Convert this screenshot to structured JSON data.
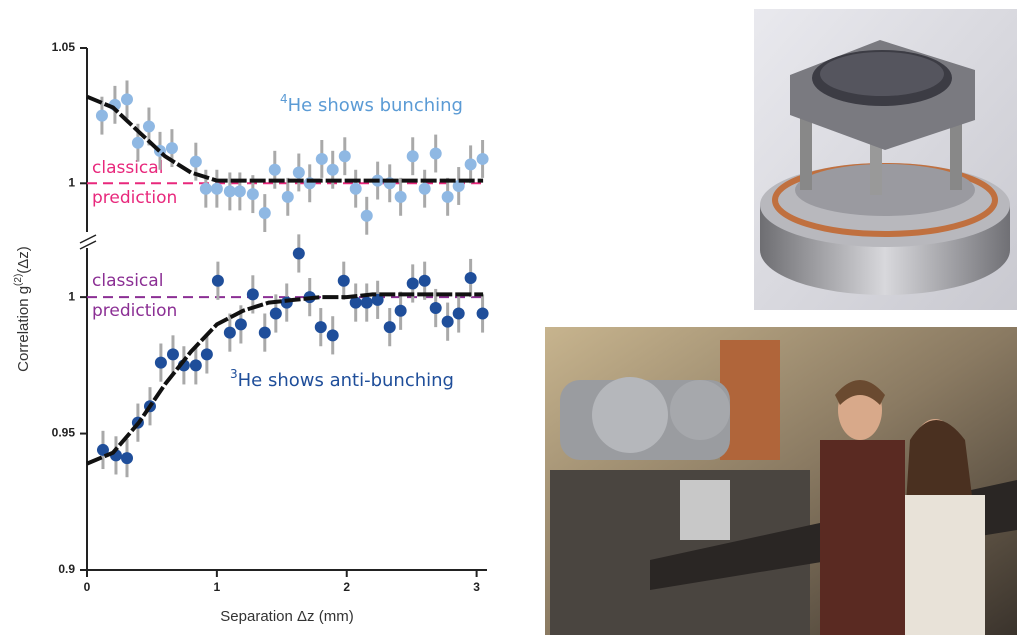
{
  "chart_data": {
    "type": "scatter",
    "x_label": "Separation Δz (mm)",
    "y_label": {
      "main": "Correlation g",
      "sup": "(2)",
      "rest": "(Δz)"
    },
    "xlim": [
      0,
      3.08
    ],
    "xticks": [
      0,
      1,
      2,
      3
    ],
    "fit_x": [
      0,
      0.2,
      0.4,
      0.6,
      0.8,
      1.0,
      1.2,
      1.4,
      1.6,
      1.8,
      2.0,
      2.2,
      2.4,
      2.6,
      2.8,
      3.0,
      3.05
    ],
    "panels": [
      {
        "ylim": [
          0.982,
          1.05
        ],
        "yticks": [
          1,
          1.05
        ],
        "reference": 1,
        "reference_color": "#e8287c",
        "reference_label": [
          "classical",
          "prediction"
        ],
        "annotation": {
          "sup": "4",
          "text": "He shows bunching"
        },
        "annotation_color": "#5b9bd5",
        "fit": [
          1.032,
          1.028,
          1.019,
          1.01,
          1.004,
          1.001,
          1.001,
          1.001,
          1.001,
          1.001,
          1.001,
          1.001,
          1.001,
          1.001,
          1.001,
          1.001,
          1.001
        ],
        "fit_color": "#111111",
        "series": [
          {
            "color": "#8fb8e3",
            "error_color": "#a9a9a9",
            "error": 0.007,
            "x": [
              0.115,
              0.215,
              0.308,
              0.392,
              0.477,
              0.562,
              0.654,
              0.838,
              0.915,
              1.0,
              1.1,
              1.177,
              1.277,
              1.369,
              1.446,
              1.546,
              1.631,
              1.715,
              1.808,
              1.892,
              1.985,
              2.069,
              2.154,
              2.238,
              2.331,
              2.415,
              2.508,
              2.6,
              2.685,
              2.777,
              2.862,
              2.954,
              3.046
            ],
            "values": [
              1.025,
              1.029,
              1.031,
              1.015,
              1.021,
              1.012,
              1.013,
              1.008,
              0.998,
              0.998,
              0.997,
              0.997,
              0.996,
              0.989,
              1.005,
              0.995,
              1.004,
              1.0,
              1.009,
              1.005,
              1.01,
              0.998,
              0.988,
              1.001,
              1.0,
              0.995,
              1.01,
              0.998,
              1.011,
              0.995,
              0.999,
              1.007,
              1.009
            ]
          }
        ]
      },
      {
        "ylim": [
          0.9,
          1.018
        ],
        "yticks": [
          0.9,
          0.95,
          1
        ],
        "reference": 1,
        "reference_color": "#8b2f94",
        "reference_label": [
          "classical",
          "prediction"
        ],
        "annotation": {
          "sup": "3",
          "text": "He shows anti-bunching"
        },
        "annotation_color": "#1f4e9a",
        "fit": [
          0.939,
          0.943,
          0.954,
          0.968,
          0.98,
          0.99,
          0.995,
          0.998,
          0.999,
          1.0,
          1.0,
          1.001,
          1.001,
          1.001,
          1.001,
          1.001,
          1.001
        ],
        "fit_color": "#111111",
        "series": [
          {
            "color": "#1f4e9a",
            "error_color": "#a9a9a9",
            "error": 0.007,
            "x": [
              0.123,
              0.223,
              0.308,
              0.392,
              0.485,
              0.569,
              0.662,
              0.746,
              0.838,
              0.923,
              1.008,
              1.1,
              1.185,
              1.277,
              1.369,
              1.454,
              1.538,
              1.631,
              1.715,
              1.8,
              1.892,
              1.977,
              2.069,
              2.154,
              2.238,
              2.331,
              2.415,
              2.508,
              2.6,
              2.685,
              2.777,
              2.862,
              2.954,
              3.046
            ],
            "values": [
              0.944,
              0.942,
              0.941,
              0.954,
              0.96,
              0.976,
              0.979,
              0.975,
              0.975,
              0.979,
              1.006,
              0.987,
              0.99,
              1.001,
              0.987,
              0.994,
              0.998,
              1.016,
              1.0,
              0.989,
              0.986,
              1.006,
              0.998,
              0.998,
              0.999,
              0.989,
              0.995,
              1.005,
              1.006,
              0.996,
              0.991,
              0.994,
              1.007,
              0.994
            ]
          }
        ]
      }
    ]
  }
}
